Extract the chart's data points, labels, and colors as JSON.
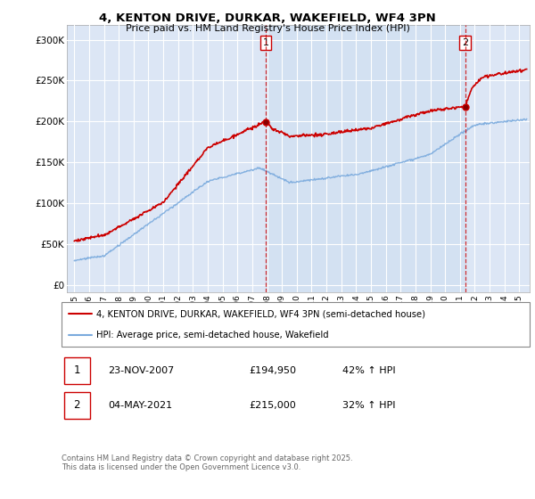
{
  "title": "4, KENTON DRIVE, DURKAR, WAKEFIELD, WF4 3PN",
  "subtitle": "Price paid vs. HM Land Registry's House Price Index (HPI)",
  "background_color": "#dce6f5",
  "plot_bg_color": "#dce6f5",
  "red_line_label": "4, KENTON DRIVE, DURKAR, WAKEFIELD, WF4 3PN (semi-detached house)",
  "blue_line_label": "HPI: Average price, semi-detached house, Wakefield",
  "sale1_date": "23-NOV-2007",
  "sale1_price": "£194,950",
  "sale1_hpi": "42% ↑ HPI",
  "sale1_x": 2007.9,
  "sale1_y": 194950,
  "sale2_date": "04-MAY-2021",
  "sale2_price": "£215,000",
  "sale2_hpi": "32% ↑ HPI",
  "sale2_x": 2021.35,
  "sale2_y": 215000,
  "ylabel_ticks": [
    "£0",
    "£50K",
    "£100K",
    "£150K",
    "£200K",
    "£250K",
    "£300K"
  ],
  "ytick_vals": [
    0,
    50000,
    100000,
    150000,
    200000,
    250000,
    300000
  ],
  "ylim": [
    -8000,
    318000
  ],
  "xlim": [
    1994.5,
    2025.7
  ],
  "xticks": [
    1995,
    1996,
    1997,
    1998,
    1999,
    2000,
    2001,
    2002,
    2003,
    2004,
    2005,
    2006,
    2007,
    2008,
    2009,
    2010,
    2011,
    2012,
    2013,
    2014,
    2015,
    2016,
    2017,
    2018,
    2019,
    2020,
    2021,
    2022,
    2023,
    2024,
    2025
  ],
  "footer": "Contains HM Land Registry data © Crown copyright and database right 2025.\nThis data is licensed under the Open Government Licence v3.0.",
  "red_color": "#cc0000",
  "blue_color": "#7aaadd",
  "vline_color": "#cc0000",
  "grid_color": "#ffffff",
  "highlight_bg": "#dce8f8"
}
